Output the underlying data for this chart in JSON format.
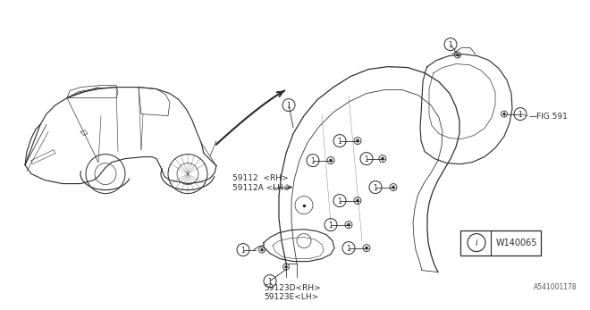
{
  "bg_color": "#ffffff",
  "line_color": "#2a2a2a",
  "text_color": "#2a2a2a",
  "fig_label": "A541001178",
  "warning_box_text": "W140065",
  "fig_ref": "FIG.591",
  "label_59112": "59112  <RH>\n59112A <LH>",
  "label_59123": "59123D<RH>\n59123E<LH>"
}
